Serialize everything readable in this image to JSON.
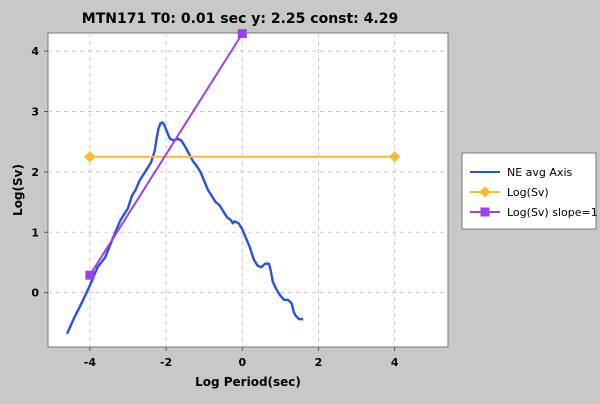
{
  "chart_data": {
    "type": "line",
    "title": "MTN171 T0: 0.01 sec  y: 2.25 const: 4.29",
    "xlabel": "Log Period(sec)",
    "ylabel": "Log(Sv)",
    "xlim": [
      -5.1,
      5.4
    ],
    "ylim": [
      -0.9,
      4.3
    ],
    "x_ticks": [
      -4,
      -2,
      0,
      2,
      4
    ],
    "y_ticks": [
      0,
      1,
      2,
      3,
      4
    ],
    "grid": true,
    "legend_position": "right",
    "series": [
      {
        "name": "NE avg Axis",
        "color": "#2850e8",
        "marker": "none",
        "points": [
          [
            -4.6,
            -0.68
          ],
          [
            -4.4,
            -0.4
          ],
          [
            -4.2,
            -0.15
          ],
          [
            -4.0,
            0.12
          ],
          [
            -3.8,
            0.42
          ],
          [
            -3.6,
            0.58
          ],
          [
            -3.4,
            0.9
          ],
          [
            -3.2,
            1.2
          ],
          [
            -3.0,
            1.4
          ],
          [
            -2.9,
            1.6
          ],
          [
            -2.8,
            1.7
          ],
          [
            -2.7,
            1.85
          ],
          [
            -2.6,
            1.95
          ],
          [
            -2.5,
            2.05
          ],
          [
            -2.4,
            2.15
          ],
          [
            -2.3,
            2.35
          ],
          [
            -2.25,
            2.55
          ],
          [
            -2.2,
            2.72
          ],
          [
            -2.15,
            2.8
          ],
          [
            -2.1,
            2.82
          ],
          [
            -2.05,
            2.78
          ],
          [
            -2.0,
            2.7
          ],
          [
            -1.95,
            2.62
          ],
          [
            -1.9,
            2.55
          ],
          [
            -1.8,
            2.52
          ],
          [
            -1.7,
            2.55
          ],
          [
            -1.6,
            2.52
          ],
          [
            -1.5,
            2.42
          ],
          [
            -1.4,
            2.3
          ],
          [
            -1.3,
            2.18
          ],
          [
            -1.2,
            2.1
          ],
          [
            -1.1,
            2.0
          ],
          [
            -1.0,
            1.85
          ],
          [
            -0.9,
            1.7
          ],
          [
            -0.8,
            1.6
          ],
          [
            -0.7,
            1.5
          ],
          [
            -0.6,
            1.45
          ],
          [
            -0.5,
            1.35
          ],
          [
            -0.4,
            1.25
          ],
          [
            -0.3,
            1.2
          ],
          [
            -0.25,
            1.15
          ],
          [
            -0.2,
            1.18
          ],
          [
            -0.1,
            1.15
          ],
          [
            0.0,
            1.05
          ],
          [
            0.1,
            0.9
          ],
          [
            0.2,
            0.75
          ],
          [
            0.3,
            0.55
          ],
          [
            0.4,
            0.45
          ],
          [
            0.5,
            0.42
          ],
          [
            0.6,
            0.48
          ],
          [
            0.7,
            0.48
          ],
          [
            0.75,
            0.35
          ],
          [
            0.8,
            0.18
          ],
          [
            0.9,
            0.05
          ],
          [
            1.0,
            -0.05
          ],
          [
            1.1,
            -0.12
          ],
          [
            1.2,
            -0.12
          ],
          [
            1.3,
            -0.18
          ],
          [
            1.35,
            -0.32
          ],
          [
            1.4,
            -0.38
          ],
          [
            1.5,
            -0.44
          ],
          [
            1.6,
            -0.44
          ]
        ]
      },
      {
        "name": "Log(Sv)",
        "color": "#f8bc30",
        "marker": "diamond",
        "points": [
          [
            -4.0,
            2.25
          ],
          [
            4.0,
            2.25
          ]
        ]
      },
      {
        "name": "Log(Sv) slope=1",
        "color": "#9a40f0",
        "marker": "square",
        "points": [
          [
            -4.0,
            0.29
          ],
          [
            0.0,
            4.29
          ]
        ]
      }
    ]
  }
}
